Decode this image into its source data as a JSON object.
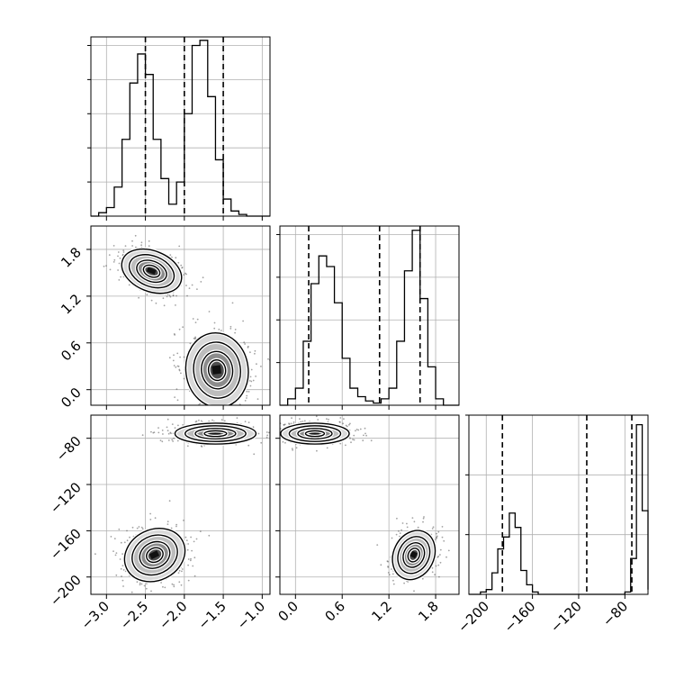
{
  "chart_data": {
    "type": "corner",
    "grid": true,
    "params": [
      {
        "ticks": [
          "−3.0",
          "−2.5",
          "−2.0",
          "−1.5",
          "−1.0"
        ],
        "tick_values": [
          -3.0,
          -2.5,
          -2.0,
          -1.5,
          -1.0
        ],
        "range": [
          -3.2,
          -0.9
        ],
        "quantile_lines": [
          -2.5,
          -2.0,
          -1.5
        ]
      },
      {
        "ticks": [
          "0.0",
          "0.6",
          "1.2",
          "1.8"
        ],
        "tick_values": [
          0.0,
          0.6,
          1.2,
          1.8
        ],
        "range": [
          -0.2,
          2.1
        ],
        "quantile_lines": [
          0.17,
          1.08,
          1.6
        ]
      },
      {
        "ticks": [
          "−200",
          "−160",
          "−120",
          "−80"
        ],
        "tick_values": [
          -200,
          -160,
          -120,
          -80
        ],
        "range": [
          -215,
          -60
        ],
        "quantile_lines": [
          -186,
          -113,
          -74
        ]
      }
    ],
    "histograms": [
      {
        "param": 0,
        "bin_edges": [
          -3.2,
          -3.1,
          -3.0,
          -2.9,
          -2.8,
          -2.7,
          -2.6,
          -2.5,
          -2.4,
          -2.3,
          -2.2,
          -2.1,
          -2.0,
          -1.9,
          -1.8,
          -1.7,
          -1.6,
          -1.5,
          -1.4,
          -1.3,
          -1.2,
          -1.1,
          -1.0,
          -0.9
        ],
        "counts": [
          0,
          2,
          5,
          17,
          45,
          78,
          95,
          83,
          45,
          22,
          7,
          20,
          60,
          100,
          103,
          70,
          33,
          10,
          3,
          1,
          0,
          0,
          0
        ],
        "y_ticks": [
          0,
          20,
          40,
          60,
          80,
          100
        ],
        "y_max": 105
      },
      {
        "param": 1,
        "bin_edges": [
          -0.2,
          -0.1,
          0.0,
          0.1,
          0.2,
          0.3,
          0.4,
          0.5,
          0.6,
          0.7,
          0.8,
          0.9,
          1.0,
          1.1,
          1.2,
          1.3,
          1.4,
          1.5,
          1.6,
          1.7,
          1.8,
          1.9,
          2.0,
          2.1
        ],
        "counts": [
          0,
          3,
          8,
          30,
          57,
          70,
          65,
          48,
          22,
          8,
          4,
          2,
          1,
          3,
          8,
          30,
          63,
          82,
          50,
          18,
          3,
          0,
          0
        ],
        "y_ticks": [
          0,
          20,
          40,
          60,
          80
        ],
        "y_max": 84
      },
      {
        "param": 2,
        "bin_edges": [
          -215,
          -210,
          -205,
          -200,
          -195,
          -190,
          -185,
          -180,
          -175,
          -170,
          -165,
          -160,
          -155,
          -150,
          -145,
          -140,
          -135,
          -130,
          -125,
          -120,
          -115,
          -110,
          -105,
          -100,
          -95,
          -90,
          -85,
          -80,
          -75,
          -70,
          -65,
          -60
        ],
        "counts": [
          0,
          0,
          1,
          2,
          9,
          19,
          24,
          34,
          28,
          10,
          4,
          1,
          0,
          0,
          0,
          0,
          0,
          0,
          0,
          0,
          0,
          0,
          0,
          0,
          0,
          0,
          0,
          1,
          15,
          71,
          35,
          2
        ],
        "y_ticks": [
          0,
          25,
          50,
          75
        ],
        "y_max": 75
      }
    ],
    "pairs": [
      {
        "x_param": 0,
        "y_param": 1,
        "modes": [
          {
            "cx": -2.42,
            "cy": 1.52,
            "sx": 0.2,
            "sy": 0.13,
            "tilt": -0.45,
            "n": 420
          },
          {
            "cx": -1.58,
            "cy": 0.25,
            "sx": 0.2,
            "sy": 0.24,
            "tilt": 0.15,
            "n": 420
          }
        ]
      },
      {
        "x_param": 0,
        "y_param": 2,
        "modes": [
          {
            "cx": -1.6,
            "cy": -76,
            "sx": 0.26,
            "sy": 4.5,
            "tilt": 0.0,
            "n": 400
          },
          {
            "cx": -2.38,
            "cy": -181,
            "sx": 0.2,
            "sy": 11,
            "tilt": 0.55,
            "n": 400
          }
        ]
      },
      {
        "x_param": 1,
        "y_param": 2,
        "modes": [
          {
            "cx": 0.25,
            "cy": -76,
            "sx": 0.22,
            "sy": 4.5,
            "tilt": 0.0,
            "n": 400
          },
          {
            "cx": 1.52,
            "cy": -181,
            "sx": 0.13,
            "sy": 11,
            "tilt": -0.55,
            "n": 400
          }
        ]
      }
    ]
  }
}
